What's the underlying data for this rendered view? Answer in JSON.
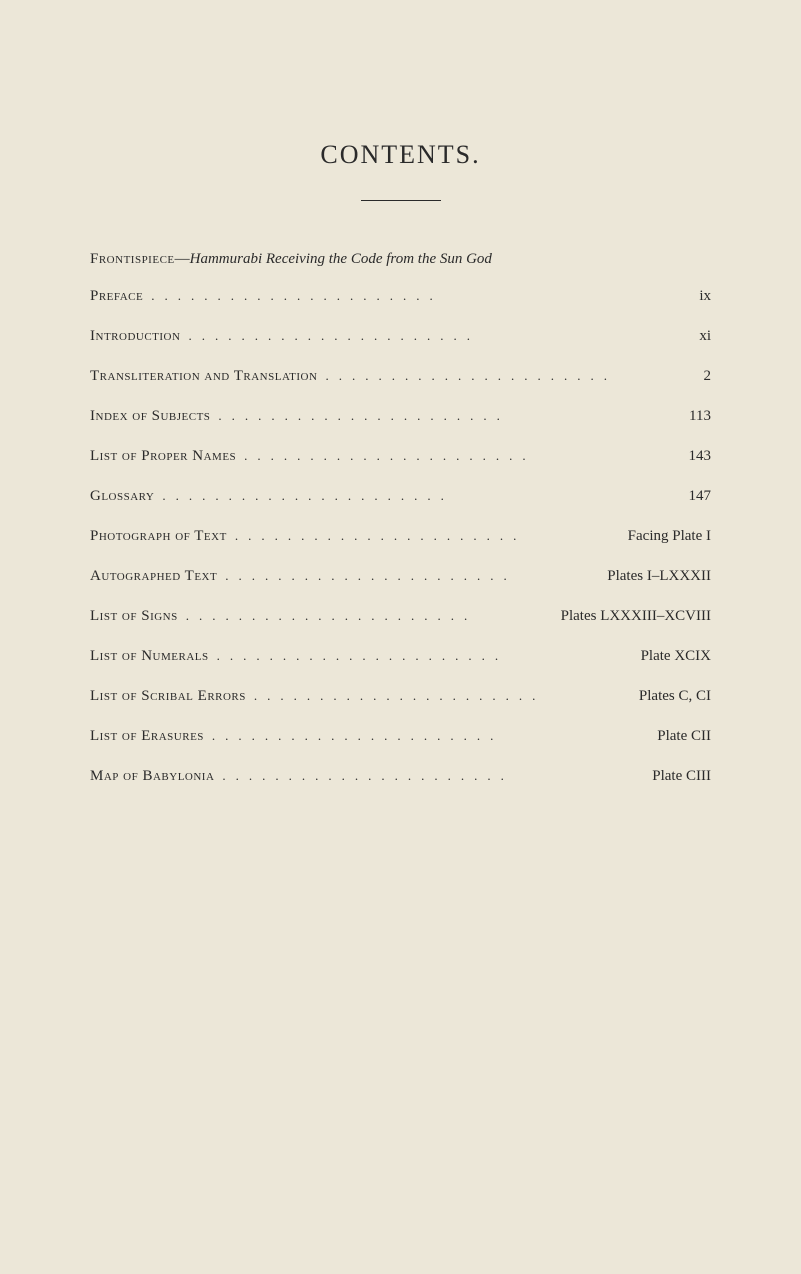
{
  "title": "CONTENTS.",
  "background_color": "#ece7d8",
  "text_color": "#2a2a2a",
  "frontispiece": {
    "label_caps": "Frontispiece",
    "dash": "—",
    "italic_text": "Hammurabi Receiving the Code from the Sun God"
  },
  "entries": [
    {
      "label": "Preface",
      "page": "ix"
    },
    {
      "label": "Introduction",
      "page": "xi"
    },
    {
      "label": "Transliteration and Translation",
      "page": "2"
    },
    {
      "label": "Index of Subjects",
      "page": "113"
    },
    {
      "label": "List of Proper Names",
      "page": "143"
    },
    {
      "label": "Glossary",
      "page": "147"
    },
    {
      "label": "Photograph of Text",
      "page": "Facing Plate I"
    },
    {
      "label": "Autographed Text",
      "page": "Plates I–LXXXII"
    },
    {
      "label": "List of Signs",
      "page": "Plates LXXXIII–XCVIII"
    },
    {
      "label": "List of Numerals",
      "page": "Plate XCIX"
    },
    {
      "label": "List of Scribal Errors",
      "page": "Plates C, CI"
    },
    {
      "label": "List of Erasures",
      "page": "Plate CII"
    },
    {
      "label": "Map of Babylonia",
      "page": "Plate CIII"
    }
  ],
  "dot_leader": "......................"
}
